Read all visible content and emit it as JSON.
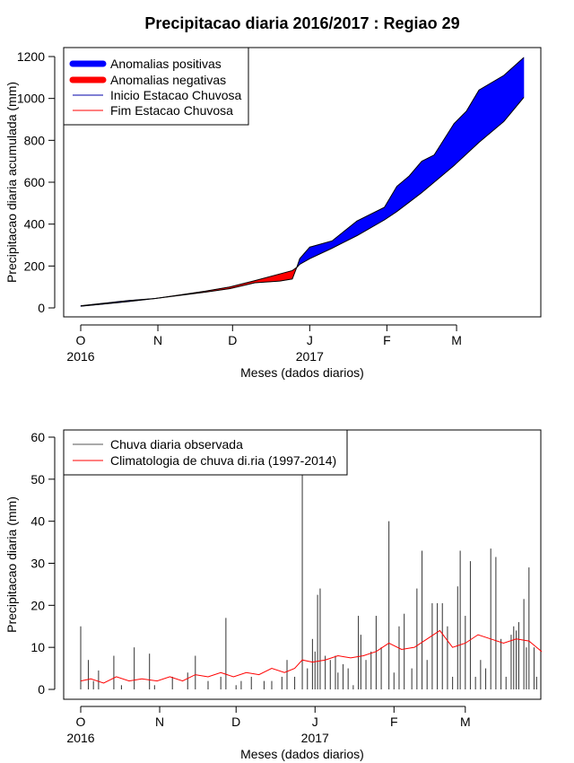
{
  "title": "Precipitacao diaria 2016/2017 : Regiao 29",
  "chart_data": [
    {
      "type": "area",
      "ylabel": "Precipitacao diaria acumulada (mm)",
      "xlabel": "Meses (dados diarios)",
      "ylim": [
        0,
        1200
      ],
      "yticks": [
        0,
        200,
        400,
        600,
        800,
        1000,
        1200
      ],
      "x_start": "2016-10-01",
      "x_end": "2017-03-31",
      "xticks": [
        {
          "date": "2016-10-01",
          "label": "O",
          "year": "2016"
        },
        {
          "date": "2016-11-01",
          "label": "N",
          "year": ""
        },
        {
          "date": "2016-12-01",
          "label": "D",
          "year": ""
        },
        {
          "date": "2017-01-01",
          "label": "J",
          "year": "2017"
        },
        {
          "date": "2017-02-01",
          "label": "F",
          "year": ""
        },
        {
          "date": "2017-03-01",
          "label": "M",
          "year": ""
        }
      ],
      "legend": {
        "position": "top-left",
        "entries": [
          {
            "label": "Anomalias positivas",
            "color": "#0000ff",
            "style": "thick"
          },
          {
            "label": "Anomalias negativas",
            "color": "#ff0000",
            "style": "thick"
          },
          {
            "label": "Inicio Estacao Chuvosa",
            "color": "#0000aa",
            "style": "thin"
          },
          {
            "label": "Fim Estacao Chuvosa",
            "color": "#ff0000",
            "style": "thin"
          }
        ]
      },
      "series": [
        {
          "name": "observed",
          "color": "#000000",
          "points": [
            [
              "2016-10-01",
              10
            ],
            [
              "2016-10-10",
              22
            ],
            [
              "2016-10-20",
              35
            ],
            [
              "2016-10-31",
              45
            ],
            [
              "2016-11-10",
              60
            ],
            [
              "2016-11-20",
              75
            ],
            [
              "2016-11-30",
              92
            ],
            [
              "2016-12-10",
              120
            ],
            [
              "2016-12-20",
              128
            ],
            [
              "2016-12-25",
              138
            ],
            [
              "2016-12-27",
              200
            ],
            [
              "2016-12-28",
              235
            ],
            [
              "2017-01-01",
              290
            ],
            [
              "2017-01-10",
              320
            ],
            [
              "2017-01-20",
              415
            ],
            [
              "2017-01-31",
              480
            ],
            [
              "2017-02-05",
              580
            ],
            [
              "2017-02-10",
              630
            ],
            [
              "2017-02-15",
              700
            ],
            [
              "2017-02-20",
              730
            ],
            [
              "2017-02-28",
              880
            ],
            [
              "2017-03-05",
              940
            ],
            [
              "2017-03-10",
              1040
            ],
            [
              "2017-03-20",
              1110
            ],
            [
              "2017-03-28",
              1195
            ]
          ]
        },
        {
          "name": "climatology",
          "color": "#000000",
          "points": [
            [
              "2016-10-01",
              8
            ],
            [
              "2016-10-10",
              18
            ],
            [
              "2016-10-20",
              30
            ],
            [
              "2016-10-31",
              45
            ],
            [
              "2016-11-10",
              62
            ],
            [
              "2016-11-20",
              80
            ],
            [
              "2016-11-30",
              100
            ],
            [
              "2016-12-10",
              130
            ],
            [
              "2016-12-20",
              162
            ],
            [
              "2016-12-25",
              178
            ],
            [
              "2016-12-27",
              195
            ],
            [
              "2016-12-28",
              208
            ],
            [
              "2017-01-01",
              235
            ],
            [
              "2017-01-10",
              285
            ],
            [
              "2017-01-20",
              345
            ],
            [
              "2017-01-31",
              420
            ],
            [
              "2017-02-05",
              460
            ],
            [
              "2017-02-10",
              505
            ],
            [
              "2017-02-15",
              550
            ],
            [
              "2017-02-20",
              600
            ],
            [
              "2017-02-28",
              680
            ],
            [
              "2017-03-05",
              735
            ],
            [
              "2017-03-10",
              790
            ],
            [
              "2017-03-20",
              890
            ],
            [
              "2017-03-28",
              1005
            ]
          ]
        }
      ]
    },
    {
      "type": "bar",
      "ylabel": "Precipitacao diaria (mm)",
      "xlabel": "Meses (dados diarios)",
      "ylim": [
        0,
        60
      ],
      "yticks": [
        0,
        10,
        20,
        30,
        40,
        50,
        60
      ],
      "x_start": "2016-10-01",
      "x_end": "2017-03-31",
      "xticks": [
        {
          "date": "2016-10-01",
          "label": "O",
          "year": "2016"
        },
        {
          "date": "2016-11-01",
          "label": "N",
          "year": ""
        },
        {
          "date": "2016-12-01",
          "label": "D",
          "year": ""
        },
        {
          "date": "2017-01-01",
          "label": "J",
          "year": "2017"
        },
        {
          "date": "2017-02-01",
          "label": "F",
          "year": ""
        },
        {
          "date": "2017-03-01",
          "label": "M",
          "year": ""
        }
      ],
      "legend": {
        "position": "top-left",
        "entries": [
          {
            "label": "Chuva diaria observada",
            "color": "#555555"
          },
          {
            "label": "Climatologia de chuva di.ria (1997-2014)",
            "color": "#ff0000"
          }
        ]
      },
      "bars": {
        "name": "Chuva diaria observada",
        "color": "#444444",
        "points": [
          [
            "2016-10-01",
            15
          ],
          [
            "2016-10-04",
            7
          ],
          [
            "2016-10-06",
            2
          ],
          [
            "2016-10-08",
            4.5
          ],
          [
            "2016-10-14",
            8
          ],
          [
            "2016-10-17",
            1
          ],
          [
            "2016-10-22",
            10
          ],
          [
            "2016-10-28",
            8.5
          ],
          [
            "2016-10-30",
            1
          ],
          [
            "2016-11-06",
            3
          ],
          [
            "2016-11-12",
            4
          ],
          [
            "2016-11-15",
            8
          ],
          [
            "2016-11-20",
            2
          ],
          [
            "2016-11-25",
            3
          ],
          [
            "2016-11-27",
            17
          ],
          [
            "2016-12-01",
            1
          ],
          [
            "2016-12-03",
            2
          ],
          [
            "2016-12-07",
            3
          ],
          [
            "2016-12-12",
            2
          ],
          [
            "2016-12-15",
            2
          ],
          [
            "2016-12-19",
            3
          ],
          [
            "2016-12-21",
            7
          ],
          [
            "2016-12-24",
            3
          ],
          [
            "2016-12-27",
            51
          ],
          [
            "2016-12-29",
            5
          ],
          [
            "2016-12-31",
            12
          ],
          [
            "2017-01-01",
            9
          ],
          [
            "2017-01-02",
            22.5
          ],
          [
            "2017-01-03",
            24
          ],
          [
            "2017-01-05",
            8
          ],
          [
            "2017-01-07",
            7
          ],
          [
            "2017-01-09",
            8
          ],
          [
            "2017-01-10",
            4
          ],
          [
            "2017-01-12",
            6
          ],
          [
            "2017-01-14",
            5
          ],
          [
            "2017-01-16",
            1
          ],
          [
            "2017-01-18",
            17.5
          ],
          [
            "2017-01-19",
            13
          ],
          [
            "2017-01-21",
            7
          ],
          [
            "2017-01-23",
            9
          ],
          [
            "2017-01-25",
            17.5
          ],
          [
            "2017-01-27",
            10
          ],
          [
            "2017-01-30",
            40
          ],
          [
            "2017-02-01",
            4
          ],
          [
            "2017-02-03",
            15
          ],
          [
            "2017-02-05",
            18
          ],
          [
            "2017-02-08",
            5
          ],
          [
            "2017-02-10",
            24
          ],
          [
            "2017-02-12",
            33
          ],
          [
            "2017-02-14",
            7
          ],
          [
            "2017-02-16",
            20.5
          ],
          [
            "2017-02-18",
            20.5
          ],
          [
            "2017-02-20",
            20.5
          ],
          [
            "2017-02-22",
            15
          ],
          [
            "2017-02-24",
            3
          ],
          [
            "2017-02-26",
            24.5
          ],
          [
            "2017-02-27",
            33
          ],
          [
            "2017-03-01",
            17.5
          ],
          [
            "2017-03-03",
            30.5
          ],
          [
            "2017-03-05",
            3
          ],
          [
            "2017-03-07",
            7
          ],
          [
            "2017-03-09",
            5
          ],
          [
            "2017-03-11",
            33.5
          ],
          [
            "2017-03-13",
            31.5
          ],
          [
            "2017-03-15",
            12
          ],
          [
            "2017-03-17",
            3
          ],
          [
            "2017-03-19",
            13
          ],
          [
            "2017-03-20",
            15
          ],
          [
            "2017-03-21",
            14
          ],
          [
            "2017-03-22",
            16
          ],
          [
            "2017-03-24",
            21.5
          ],
          [
            "2017-03-25",
            10
          ],
          [
            "2017-03-26",
            29
          ],
          [
            "2017-03-28",
            10
          ],
          [
            "2017-03-29",
            3
          ]
        ]
      },
      "line": {
        "name": "Climatologia de chuva di.ria (1997-2014)",
        "color": "#ff0000",
        "points": [
          [
            "2016-10-01",
            2
          ],
          [
            "2016-10-05",
            2.5
          ],
          [
            "2016-10-10",
            1.5
          ],
          [
            "2016-10-15",
            3
          ],
          [
            "2016-10-20",
            2
          ],
          [
            "2016-10-25",
            2.5
          ],
          [
            "2016-10-31",
            2
          ],
          [
            "2016-11-05",
            3
          ],
          [
            "2016-11-10",
            2
          ],
          [
            "2016-11-15",
            3.5
          ],
          [
            "2016-11-20",
            3
          ],
          [
            "2016-11-25",
            4
          ],
          [
            "2016-11-30",
            3
          ],
          [
            "2016-12-05",
            4
          ],
          [
            "2016-12-10",
            3.5
          ],
          [
            "2016-12-15",
            5
          ],
          [
            "2016-12-20",
            4
          ],
          [
            "2016-12-24",
            5
          ],
          [
            "2016-12-27",
            7
          ],
          [
            "2016-12-31",
            6.5
          ],
          [
            "2017-01-05",
            7
          ],
          [
            "2017-01-10",
            8
          ],
          [
            "2017-01-15",
            7.5
          ],
          [
            "2017-01-20",
            8
          ],
          [
            "2017-01-25",
            9
          ],
          [
            "2017-01-30",
            11
          ],
          [
            "2017-02-04",
            9.5
          ],
          [
            "2017-02-09",
            10
          ],
          [
            "2017-02-14",
            12
          ],
          [
            "2017-02-19",
            14
          ],
          [
            "2017-02-24",
            10
          ],
          [
            "2017-03-01",
            11
          ],
          [
            "2017-03-06",
            13
          ],
          [
            "2017-03-11",
            12
          ],
          [
            "2017-03-16",
            11
          ],
          [
            "2017-03-21",
            12
          ],
          [
            "2017-03-26",
            11.5
          ],
          [
            "2017-03-31",
            9
          ]
        ]
      }
    }
  ]
}
